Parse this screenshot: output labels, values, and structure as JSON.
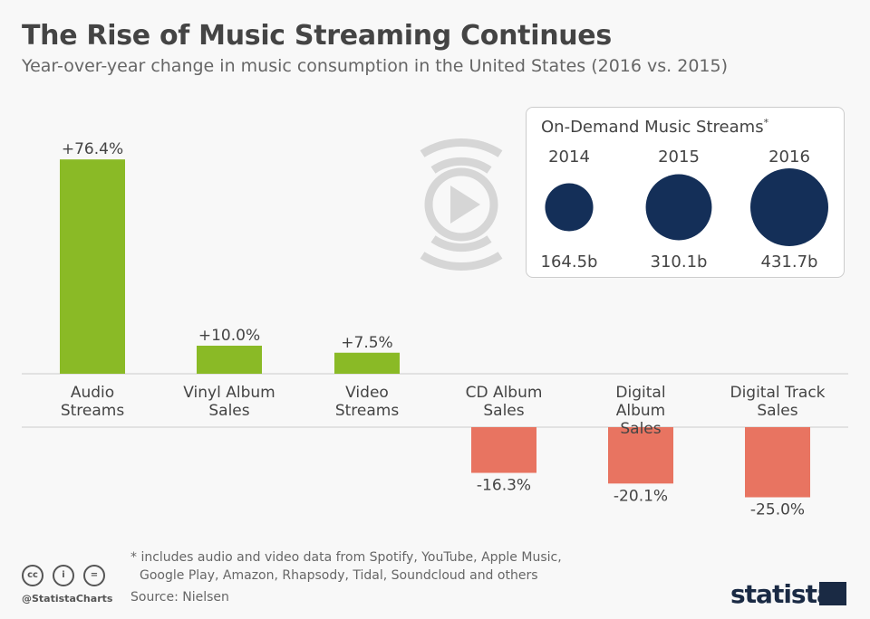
{
  "header": {
    "title": "The Rise of Music Streaming Continues",
    "subtitle": "Year-over-year change in music consumption in the United States (2016 vs. 2015)"
  },
  "chart_data": [
    {
      "type": "bar",
      "title": "Year-over-year change in music consumption",
      "categories": [
        "Audio Streams",
        "Vinyl Album Sales",
        "Video Streams",
        "CD Album Sales",
        "Digital Album Sales",
        "Digital Track Sales"
      ],
      "category_lines": [
        [
          "Audio",
          "Streams"
        ],
        [
          "Vinyl Album",
          "Sales"
        ],
        [
          "Video",
          "Streams"
        ],
        [
          "CD Album",
          "Sales"
        ],
        [
          "Digital Album",
          "Sales"
        ],
        [
          "Digital Track",
          "Sales"
        ]
      ],
      "values": [
        76.4,
        10.0,
        7.5,
        -16.3,
        -20.1,
        -25.0
      ],
      "labels": [
        "+76.4%",
        "+10.0%",
        "+7.5%",
        "-16.3%",
        "-20.1%",
        "-25.0%"
      ],
      "colors": {
        "positive": "#8aba26",
        "negative": "#e87461"
      },
      "unit": "%"
    },
    {
      "type": "bubble",
      "title": "On-Demand Music Streams",
      "title_mark": "*",
      "categories": [
        "2014",
        "2015",
        "2016"
      ],
      "values": [
        164.5,
        310.1,
        431.7
      ],
      "labels": [
        "164.5b",
        "310.1b",
        "431.7b"
      ],
      "color": "#142f58"
    }
  ],
  "footer": {
    "note_line1": "* includes audio and video data from Spotify, YouTube, Apple Music,",
    "note_line2": "Google Play, Amazon, Rhapsody, Tidal, Soundcloud and others",
    "source": "Source: Nielsen",
    "handle": "@StatistaCharts",
    "logo": "statista",
    "cc_icons": [
      "cc",
      "by",
      "nd"
    ]
  }
}
